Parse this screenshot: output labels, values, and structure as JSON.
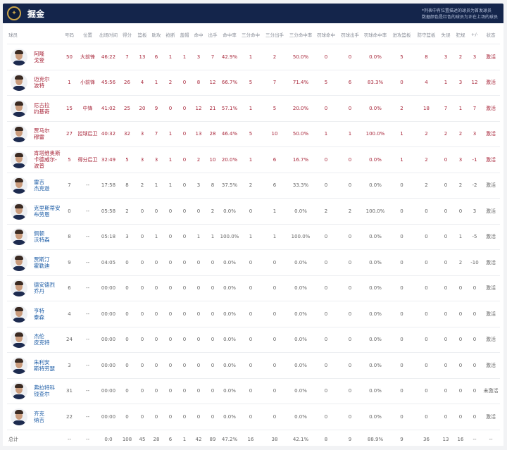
{
  "header": {
    "team": "掘金",
    "logo_icon": "nuggets-logo",
    "note_line1": "*列表中有位置描述的球员为首发球员",
    "note_line2": "数据颜色是红色的球员为正在上场的球员",
    "colors": {
      "bar": "#14254b",
      "on_court": "#a8263a",
      "name_link": "#1c5ca6"
    }
  },
  "columns": [
    "球员",
    "号码",
    "位置",
    "出场时间",
    "得分",
    "篮板",
    "助攻",
    "抢断",
    "盖帽",
    "命中",
    "出手",
    "命中率",
    "三分命中",
    "三分出手",
    "三分命中率",
    "罚球命中",
    "罚球出手",
    "罚球命中率",
    "进攻篮板",
    "防守篮板",
    "失误",
    "犯规",
    "+/-",
    "状态"
  ],
  "players": [
    {
      "name": "阿隆\n戈登",
      "on_court": true,
      "stats": [
        "50",
        "大前锋",
        "46:22",
        "7",
        "13",
        "6",
        "1",
        "1",
        "3",
        "7",
        "42.9%",
        "1",
        "2",
        "50.0%",
        "0",
        "0",
        "0.0%",
        "5",
        "8",
        "3",
        "2",
        "3",
        "激活"
      ]
    },
    {
      "name": "迈克尔\n波特",
      "on_court": true,
      "stats": [
        "1",
        "小前锋",
        "45:56",
        "26",
        "4",
        "1",
        "2",
        "0",
        "8",
        "12",
        "66.7%",
        "5",
        "7",
        "71.4%",
        "5",
        "6",
        "83.3%",
        "0",
        "4",
        "1",
        "3",
        "12",
        "激活"
      ]
    },
    {
      "name": "尼古拉\n约基奇",
      "on_court": true,
      "stats": [
        "15",
        "中锋",
        "41:02",
        "25",
        "20",
        "9",
        "0",
        "0",
        "12",
        "21",
        "57.1%",
        "1",
        "5",
        "20.0%",
        "0",
        "0",
        "0.0%",
        "2",
        "18",
        "7",
        "1",
        "7",
        "激活"
      ]
    },
    {
      "name": "贾马尔\n穆雷",
      "on_court": true,
      "stats": [
        "27",
        "控球后卫",
        "40:32",
        "32",
        "3",
        "7",
        "1",
        "0",
        "13",
        "28",
        "46.4%",
        "5",
        "10",
        "50.0%",
        "1",
        "1",
        "100.0%",
        "1",
        "2",
        "2",
        "2",
        "3",
        "激活"
      ]
    },
    {
      "name": "肯塔维奥斯卡德威尔-波普",
      "on_court": true,
      "stats": [
        "5",
        "得分后卫",
        "32:49",
        "5",
        "3",
        "3",
        "1",
        "0",
        "2",
        "10",
        "20.0%",
        "1",
        "6",
        "16.7%",
        "0",
        "0",
        "0.0%",
        "1",
        "2",
        "0",
        "3",
        "-1",
        "激活"
      ]
    },
    {
      "name": "雷吉\n杰克逊",
      "on_court": false,
      "stats": [
        "7",
        "--",
        "17:58",
        "8",
        "2",
        "1",
        "1",
        "0",
        "3",
        "8",
        "37.5%",
        "2",
        "6",
        "33.3%",
        "0",
        "0",
        "0.0%",
        "0",
        "2",
        "0",
        "2",
        "-2",
        "激活"
      ]
    },
    {
      "name": "克里斯蒂安布劳恩",
      "on_court": false,
      "stats": [
        "0",
        "--",
        "05:58",
        "2",
        "0",
        "0",
        "0",
        "0",
        "0",
        "2",
        "0.0%",
        "0",
        "1",
        "0.0%",
        "2",
        "2",
        "100.0%",
        "0",
        "0",
        "0",
        "0",
        "3",
        "激活"
      ]
    },
    {
      "name": "佩顿\n沃特森",
      "on_court": false,
      "stats": [
        "8",
        "--",
        "05:18",
        "3",
        "0",
        "1",
        "0",
        "0",
        "1",
        "1",
        "100.0%",
        "1",
        "1",
        "100.0%",
        "0",
        "0",
        "0.0%",
        "0",
        "0",
        "0",
        "1",
        "-5",
        "激活"
      ]
    },
    {
      "name": "贾斯汀\n霍勒迪",
      "on_court": false,
      "stats": [
        "9",
        "--",
        "04:05",
        "0",
        "0",
        "0",
        "0",
        "0",
        "0",
        "0",
        "0.0%",
        "0",
        "0",
        "0.0%",
        "0",
        "0",
        "0.0%",
        "0",
        "0",
        "0",
        "2",
        "-10",
        "激活"
      ]
    },
    {
      "name": "德安德烈\n乔丹",
      "on_court": false,
      "stats": [
        "6",
        "--",
        "00:00",
        "0",
        "0",
        "0",
        "0",
        "0",
        "0",
        "0",
        "0.0%",
        "0",
        "0",
        "0.0%",
        "0",
        "0",
        "0.0%",
        "0",
        "0",
        "0",
        "0",
        "0",
        "激活"
      ]
    },
    {
      "name": "亨特\n泰森",
      "on_court": false,
      "stats": [
        "4",
        "--",
        "00:00",
        "0",
        "0",
        "0",
        "0",
        "0",
        "0",
        "0",
        "0.0%",
        "0",
        "0",
        "0.0%",
        "0",
        "0",
        "0.0%",
        "0",
        "0",
        "0",
        "0",
        "0",
        "激活"
      ]
    },
    {
      "name": "杰伦\n皮克特",
      "on_court": false,
      "stats": [
        "24",
        "--",
        "00:00",
        "0",
        "0",
        "0",
        "0",
        "0",
        "0",
        "0",
        "0.0%",
        "0",
        "0",
        "0.0%",
        "0",
        "0",
        "0.0%",
        "0",
        "0",
        "0",
        "0",
        "0",
        "激活"
      ]
    },
    {
      "name": "朱利安\n斯特劳瑟",
      "on_court": false,
      "stats": [
        "3",
        "--",
        "00:00",
        "0",
        "0",
        "0",
        "0",
        "0",
        "0",
        "0",
        "0.0%",
        "0",
        "0",
        "0.0%",
        "0",
        "0",
        "0.0%",
        "0",
        "0",
        "0",
        "0",
        "0",
        "激活"
      ]
    },
    {
      "name": "弗拉特科\n钱查尔",
      "on_court": false,
      "stats": [
        "31",
        "--",
        "00:00",
        "0",
        "0",
        "0",
        "0",
        "0",
        "0",
        "0",
        "0.0%",
        "0",
        "0",
        "0.0%",
        "0",
        "0",
        "0.0%",
        "0",
        "0",
        "0",
        "0",
        "0",
        "未激活"
      ]
    },
    {
      "name": "齐克\n纳吉",
      "on_court": false,
      "stats": [
        "22",
        "--",
        "00:00",
        "0",
        "0",
        "0",
        "0",
        "0",
        "0",
        "0",
        "0.0%",
        "0",
        "0",
        "0.0%",
        "0",
        "0",
        "0.0%",
        "0",
        "0",
        "0",
        "0",
        "0",
        "激活"
      ]
    }
  ],
  "totals": {
    "label": "总计",
    "stats": [
      "--",
      "--",
      "0:0",
      "108",
      "45",
      "28",
      "6",
      "1",
      "42",
      "89",
      "47.2%",
      "16",
      "38",
      "42.1%",
      "8",
      "9",
      "88.9%",
      "9",
      "36",
      "13",
      "16",
      "--",
      "--"
    ]
  }
}
